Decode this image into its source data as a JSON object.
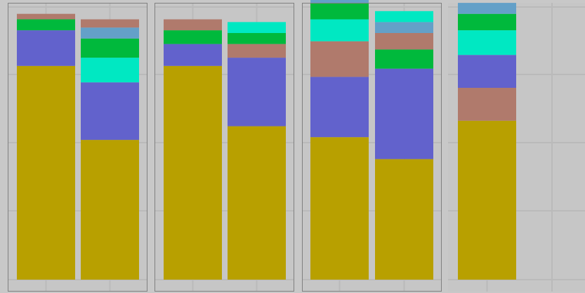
{
  "chart_data": {
    "type": "bar",
    "stacked": true,
    "grid": true,
    "panels": [
      {
        "bars": [
          {
            "segments": [
              {
                "color": "#b8a000",
                "value": 0.78
              },
              {
                "color": "#6262cc",
                "value": 0.13
              },
              {
                "color": "#00b93c",
                "value": 0.04
              },
              {
                "color": "#b07a6c",
                "value": 0.02
              }
            ]
          },
          {
            "segments": [
              {
                "color": "#b8a000",
                "value": 0.51
              },
              {
                "color": "#6262cc",
                "value": 0.21
              },
              {
                "color": "#00e8c2",
                "value": 0.09
              },
              {
                "color": "#00b93c",
                "value": 0.07
              },
              {
                "color": "#64a0c8",
                "value": 0.04
              },
              {
                "color": "#b07a6c",
                "value": 0.03
              }
            ]
          }
        ]
      },
      {
        "bars": [
          {
            "segments": [
              {
                "color": "#b8a000",
                "value": 0.78
              },
              {
                "color": "#6262cc",
                "value": 0.08
              },
              {
                "color": "#00b93c",
                "value": 0.05
              },
              {
                "color": "#b07a6c",
                "value": 0.04
              }
            ]
          },
          {
            "segments": [
              {
                "color": "#b8a000",
                "value": 0.56
              },
              {
                "color": "#6262cc",
                "value": 0.25
              },
              {
                "color": "#b07a6c",
                "value": 0.05
              },
              {
                "color": "#00b93c",
                "value": 0.04
              },
              {
                "color": "#00e8c2",
                "value": 0.04
              }
            ]
          }
        ]
      },
      {
        "bars": [
          {
            "segments": [
              {
                "color": "#b8a000",
                "value": 0.52
              },
              {
                "color": "#6262cc",
                "value": 0.22
              },
              {
                "color": "#b07a6c",
                "value": 0.13
              },
              {
                "color": "#00e8c2",
                "value": 0.08
              },
              {
                "color": "#00b93c",
                "value": 0.06
              },
              {
                "color": "#64a0c8",
                "value": 0.02
              }
            ]
          },
          {
            "segments": [
              {
                "color": "#b8a000",
                "value": 0.44
              },
              {
                "color": "#6262cc",
                "value": 0.33
              },
              {
                "color": "#00b93c",
                "value": 0.07
              },
              {
                "color": "#b07a6c",
                "value": 0.06
              },
              {
                "color": "#64a0c8",
                "value": 0.04
              },
              {
                "color": "#00e8c2",
                "value": 0.04
              }
            ]
          }
        ]
      },
      {
        "bars": [
          {
            "segments": [
              {
                "color": "#b8a000",
                "value": 0.58
              },
              {
                "color": "#b07a6c",
                "value": 0.12
              },
              {
                "color": "#6262cc",
                "value": 0.12
              },
              {
                "color": "#00e8c2",
                "value": 0.09
              },
              {
                "color": "#00b93c",
                "value": 0.06
              },
              {
                "color": "#64a0c8",
                "value": 0.04
              }
            ]
          }
        ]
      }
    ]
  }
}
